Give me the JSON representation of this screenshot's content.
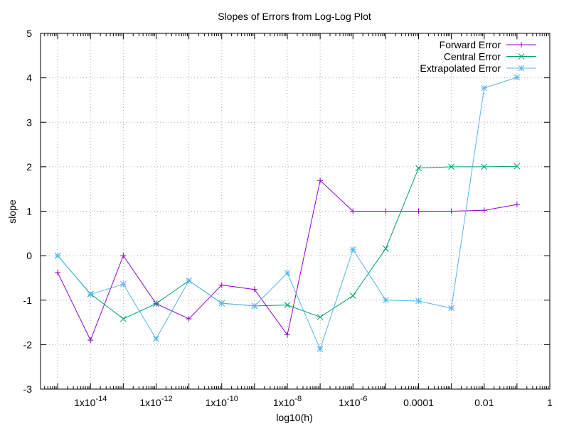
{
  "chart_data": {
    "type": "line",
    "title": "Slopes of Errors from Log-Log Plot",
    "xlabel": "log10(h)",
    "ylabel": "slope",
    "x_scale": "log",
    "xlim": [
      3e-16,
      1
    ],
    "ylim": [
      -3,
      5
    ],
    "grid": true,
    "legend_position": "top-right",
    "x_ticks": [
      {
        "value": 1e-14,
        "label": "1x10",
        "exp": "-14"
      },
      {
        "value": 1e-12,
        "label": "1x10",
        "exp": "-12"
      },
      {
        "value": 1e-10,
        "label": "1x10",
        "exp": "-10"
      },
      {
        "value": 1e-08,
        "label": "1x10",
        "exp": "-8"
      },
      {
        "value": 1e-06,
        "label": "1x10",
        "exp": "-6"
      },
      {
        "value": 0.0001,
        "label": "0.0001",
        "exp": ""
      },
      {
        "value": 0.01,
        "label": "0.01",
        "exp": ""
      },
      {
        "value": 1,
        "label": "1",
        "exp": ""
      }
    ],
    "y_ticks": [
      {
        "value": -3,
        "label": "-3"
      },
      {
        "value": -2,
        "label": "-2"
      },
      {
        "value": -1,
        "label": "-1"
      },
      {
        "value": 0,
        "label": "0"
      },
      {
        "value": 1,
        "label": "1"
      },
      {
        "value": 2,
        "label": "2"
      },
      {
        "value": 3,
        "label": "3"
      },
      {
        "value": 4,
        "label": "4"
      },
      {
        "value": 5,
        "label": "5"
      }
    ],
    "x": [
      1e-15,
      1e-14,
      1e-13,
      1e-12,
      1e-11,
      1e-10,
      1e-09,
      1e-08,
      1e-07,
      1e-06,
      1e-05,
      0.0001,
      0.001,
      0.01,
      0.1
    ],
    "series": [
      {
        "name": "Forward Error",
        "color": "#9400d3",
        "marker": "plus",
        "values": [
          -0.38,
          -1.9,
          0.0,
          -1.08,
          -1.42,
          -0.66,
          -0.76,
          -1.78,
          1.69,
          1.0,
          1.0,
          1.0,
          1.0,
          1.02,
          1.15
        ]
      },
      {
        "name": "Central Error",
        "color": "#009e73",
        "marker": "cross",
        "values": [
          0.0,
          -0.86,
          -1.42,
          -1.08,
          -0.56,
          -1.07,
          -1.13,
          -1.11,
          -1.38,
          -0.9,
          0.16,
          1.97,
          2.0,
          2.0,
          2.01
        ]
      },
      {
        "name": "Extrapolated Error",
        "color": "#56b4e9",
        "marker": "star",
        "values": [
          0.0,
          -0.87,
          -0.64,
          -1.87,
          -0.56,
          -1.07,
          -1.13,
          -0.39,
          -2.1,
          0.14,
          -1.0,
          -1.02,
          -1.18,
          3.77,
          4.01
        ]
      }
    ]
  }
}
